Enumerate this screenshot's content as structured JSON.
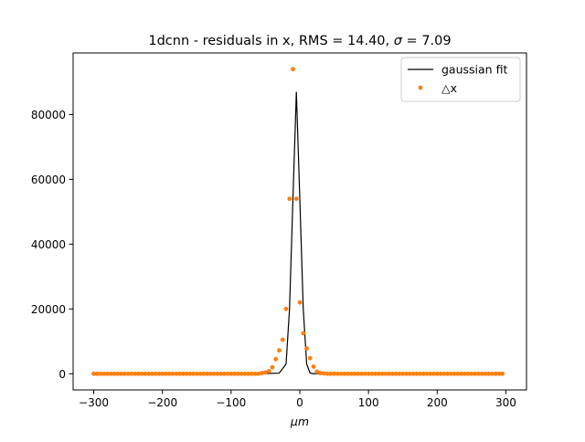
{
  "chart_data": {
    "type": "scatter",
    "title_main": "1dcnn - residuals in x, RMS = 14.40, ",
    "title_sigma": "σ",
    "title_tail": " = 7.09",
    "xlabel": "μm",
    "ylabel": "",
    "xlim": [
      -330,
      330
    ],
    "ylim": [
      -5000,
      99000
    ],
    "xticks": [
      -300,
      -200,
      -100,
      0,
      100,
      200,
      300
    ],
    "xtick_labels": [
      "−300",
      "−200",
      "−100",
      "0",
      "100",
      "200",
      "300"
    ],
    "yticks": [
      0,
      20000,
      40000,
      60000,
      80000
    ],
    "ytick_labels": [
      "0",
      "20000",
      "40000",
      "60000",
      "80000"
    ],
    "grid": false,
    "legend_position": "top-right",
    "series": [
      {
        "name": "gaussian fit",
        "kind": "line",
        "color": "#000000",
        "x": [
          -300,
          -60,
          -30,
          -20,
          -15,
          -10,
          -5,
          0,
          5,
          10,
          15,
          20,
          30,
          60,
          295
        ],
        "y": [
          0,
          0,
          200,
          3000,
          20000,
          54000,
          87000,
          54000,
          20000,
          3000,
          200,
          0,
          0,
          0,
          0
        ]
      },
      {
        "name": "△x",
        "kind": "scatter",
        "color": "#ff7f0e",
        "x": [
          -300,
          -295,
          -290,
          -285,
          -280,
          -275,
          -270,
          -265,
          -260,
          -255,
          -250,
          -245,
          -240,
          -235,
          -230,
          -225,
          -220,
          -215,
          -210,
          -205,
          -200,
          -195,
          -190,
          -185,
          -180,
          -175,
          -170,
          -165,
          -160,
          -155,
          -150,
          -145,
          -140,
          -135,
          -130,
          -125,
          -120,
          -115,
          -110,
          -105,
          -100,
          -95,
          -90,
          -85,
          -80,
          -75,
          -70,
          -65,
          -60,
          -55,
          -50,
          -45,
          -40,
          -35,
          -30,
          -25,
          -20,
          -15,
          -10,
          -5,
          0,
          5,
          10,
          15,
          20,
          25,
          30,
          35,
          40,
          45,
          50,
          55,
          60,
          65,
          70,
          75,
          80,
          85,
          90,
          95,
          100,
          105,
          110,
          115,
          120,
          125,
          130,
          135,
          140,
          145,
          150,
          155,
          160,
          165,
          170,
          175,
          180,
          185,
          190,
          195,
          200,
          205,
          210,
          215,
          220,
          225,
          230,
          235,
          240,
          245,
          250,
          255,
          260,
          265,
          270,
          275,
          280,
          285,
          290,
          295
        ],
        "y": [
          0,
          0,
          0,
          0,
          0,
          0,
          0,
          0,
          0,
          0,
          0,
          0,
          0,
          0,
          0,
          0,
          0,
          0,
          0,
          0,
          0,
          0,
          0,
          0,
          0,
          0,
          0,
          0,
          0,
          0,
          0,
          0,
          0,
          0,
          0,
          0,
          0,
          0,
          0,
          0,
          0,
          0,
          0,
          0,
          0,
          0,
          0,
          0,
          0,
          200,
          400,
          800,
          2000,
          4500,
          7200,
          10500,
          20000,
          54000,
          94000,
          54000,
          22000,
          12500,
          7800,
          4800,
          2200,
          600,
          200,
          100,
          0,
          0,
          0,
          0,
          0,
          0,
          0,
          0,
          0,
          0,
          0,
          0,
          0,
          0,
          0,
          0,
          0,
          0,
          0,
          0,
          0,
          0,
          0,
          0,
          0,
          0,
          0,
          0,
          0,
          0,
          0,
          0,
          0,
          0,
          0,
          0,
          0,
          0,
          0,
          0,
          0,
          0,
          0,
          0,
          0,
          0,
          0,
          0,
          0,
          0,
          0,
          0
        ]
      }
    ]
  }
}
